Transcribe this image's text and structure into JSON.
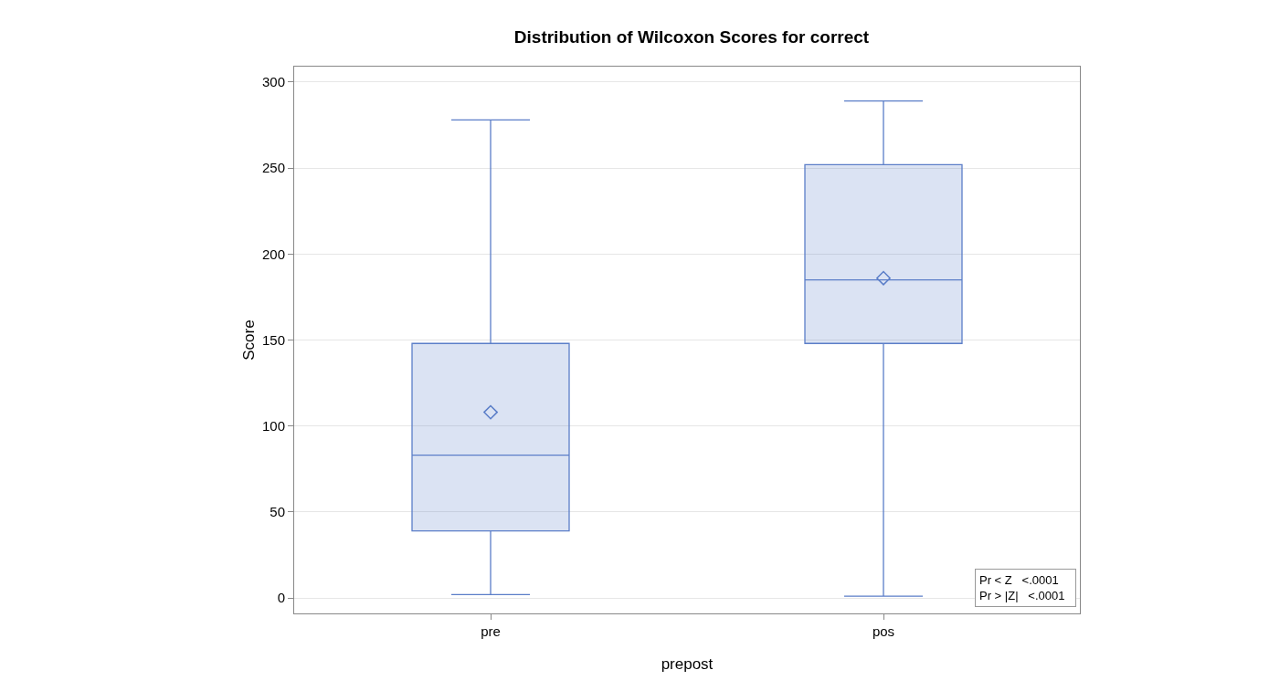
{
  "chart_data": {
    "type": "box",
    "title": "Distribution of Wilcoxon Scores for correct",
    "xlabel": "prepost",
    "ylabel": "Score",
    "categories": [
      "pre",
      "pos"
    ],
    "ylim": [
      -9,
      309
    ],
    "yticks": [
      0,
      50,
      100,
      150,
      200,
      250,
      300
    ],
    "grid": "y",
    "marker": "diamond",
    "annotations": [
      "Pr < Z   <.0001",
      "Pr > |Z|   <.0001"
    ],
    "series": [
      {
        "color": "#5b7ec8",
        "boxes": [
          {
            "low": 2,
            "q1": 39,
            "median": 83,
            "q3": 148,
            "high": 278,
            "mean": 108
          },
          {
            "low": 1,
            "q1": 148,
            "median": 185,
            "q3": 252,
            "high": 289,
            "mean": 186
          }
        ]
      }
    ]
  }
}
